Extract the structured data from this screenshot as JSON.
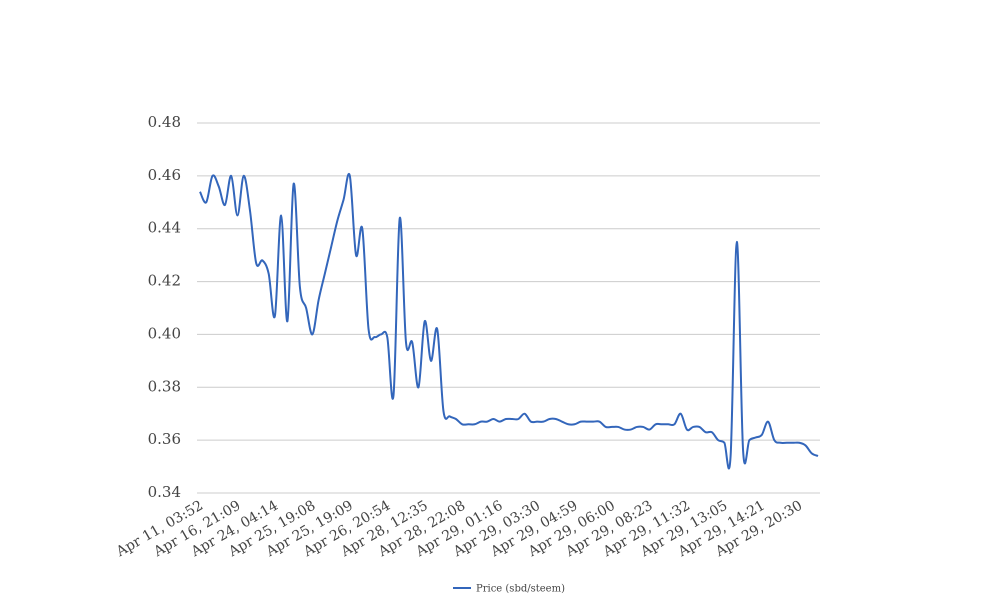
{
  "chart_data": {
    "type": "line",
    "categories": [
      "Apr 11, 03:52",
      null,
      null,
      null,
      null,
      null,
      "Apr 16, 21:09",
      null,
      null,
      null,
      null,
      null,
      "Apr 24, 04:14",
      null,
      null,
      null,
      null,
      null,
      "Apr 25, 19:08",
      null,
      null,
      null,
      null,
      null,
      "Apr 25, 19:09",
      null,
      null,
      null,
      null,
      null,
      "Apr 26, 20:54",
      null,
      null,
      null,
      null,
      null,
      "Apr 28, 12:35",
      null,
      null,
      null,
      null,
      null,
      "Apr 28, 22:08",
      null,
      null,
      null,
      null,
      null,
      "Apr 29, 01:16",
      null,
      null,
      null,
      null,
      null,
      "Apr 29, 03:30",
      null,
      null,
      null,
      null,
      null,
      "Apr 29, 04:59",
      null,
      null,
      null,
      null,
      null,
      "Apr 29, 06:00",
      null,
      null,
      null,
      null,
      null,
      "Apr 29, 08:23",
      null,
      null,
      null,
      null,
      null,
      "Apr 29, 11:32",
      null,
      null,
      null,
      null,
      null,
      "Apr 29, 13:05",
      null,
      null,
      null,
      null,
      null,
      "Apr 29, 14:21",
      null,
      null,
      null,
      null,
      null,
      "Apr 29, 20:30",
      null,
      null,
      null
    ],
    "series": [
      {
        "name": "Price (sbd/steem)",
        "color": "#3366bb",
        "values": [
          0.454,
          0.45,
          0.46,
          0.456,
          0.449,
          0.46,
          0.445,
          0.46,
          0.447,
          0.427,
          0.428,
          0.423,
          0.407,
          0.445,
          0.405,
          0.457,
          0.418,
          0.41,
          0.4,
          0.413,
          0.423,
          0.433,
          0.443,
          0.451,
          0.46,
          0.43,
          0.44,
          0.402,
          0.399,
          0.4,
          0.399,
          0.377,
          0.444,
          0.397,
          0.397,
          0.38,
          0.405,
          0.39,
          0.402,
          0.371,
          0.369,
          0.368,
          0.366,
          0.366,
          0.366,
          0.367,
          0.367,
          0.368,
          0.367,
          0.368,
          0.368,
          0.368,
          0.37,
          0.367,
          0.367,
          0.367,
          0.368,
          0.368,
          0.367,
          0.366,
          0.366,
          0.367,
          0.367,
          0.367,
          0.367,
          0.365,
          0.365,
          0.365,
          0.364,
          0.364,
          0.365,
          0.365,
          0.364,
          0.366,
          0.366,
          0.366,
          0.366,
          0.37,
          0.364,
          0.365,
          0.365,
          0.363,
          0.363,
          0.36,
          0.359,
          0.354,
          0.435,
          0.356,
          0.36,
          0.361,
          0.362,
          0.367,
          0.36,
          0.359,
          0.359,
          0.359,
          0.359,
          0.358,
          0.355,
          0.354
        ]
      }
    ],
    "ylim": [
      0.34,
      0.48
    ],
    "yticks": [
      0.34,
      0.36,
      0.38,
      {
        "value": 0.4,
        "label": "0.40"
      },
      0.42,
      0.44,
      0.46,
      0.48
    ],
    "grid": true,
    "legend": "bottom"
  }
}
